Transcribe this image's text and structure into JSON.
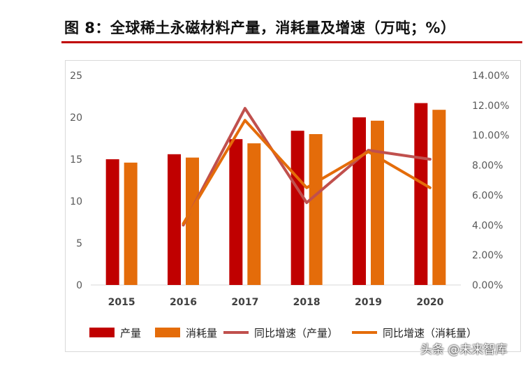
{
  "page": {
    "title": "图 8：全球稀土永磁材料产量，消耗量及增速（万吨；%）",
    "watermark": "头条 @未来智库"
  },
  "colors": {
    "production": "#c00000",
    "consumption": "#e46c0a",
    "production_growth": "#c0504d",
    "consumption_growth": "#e46c0a",
    "title_rule": "#c00000"
  },
  "chart_data": {
    "type": "bar",
    "title": "全球稀土永磁材料产量，消耗量及增速（万吨；%）",
    "categories": [
      "2015",
      "2016",
      "2017",
      "2018",
      "2019",
      "2020"
    ],
    "y_left": {
      "lim": [
        0,
        25
      ],
      "ticks": [
        "0",
        "5",
        "10",
        "15",
        "20",
        "25"
      ]
    },
    "y_right": {
      "lim": [
        0,
        14
      ],
      "ticks": [
        "0.00%",
        "2.00%",
        "4.00%",
        "6.00%",
        "8.00%",
        "10.00%",
        "12.00%",
        "14.00%"
      ]
    },
    "series": [
      {
        "name": "产量",
        "kind": "bar",
        "axis": "left",
        "values": [
          15.0,
          15.6,
          17.4,
          18.4,
          20.0,
          21.7
        ]
      },
      {
        "name": "消耗量",
        "kind": "bar",
        "axis": "left",
        "values": [
          14.6,
          15.2,
          16.9,
          18.0,
          19.6,
          20.9
        ]
      },
      {
        "name": "同比增速（产量）",
        "kind": "line",
        "axis": "right",
        "values": [
          null,
          4.0,
          11.8,
          5.5,
          9.0,
          8.4
        ]
      },
      {
        "name": "同比增速（消耗量）",
        "kind": "line",
        "axis": "right",
        "values": [
          null,
          4.1,
          11.0,
          6.5,
          8.9,
          6.5
        ]
      }
    ],
    "legend_position": "bottom"
  }
}
